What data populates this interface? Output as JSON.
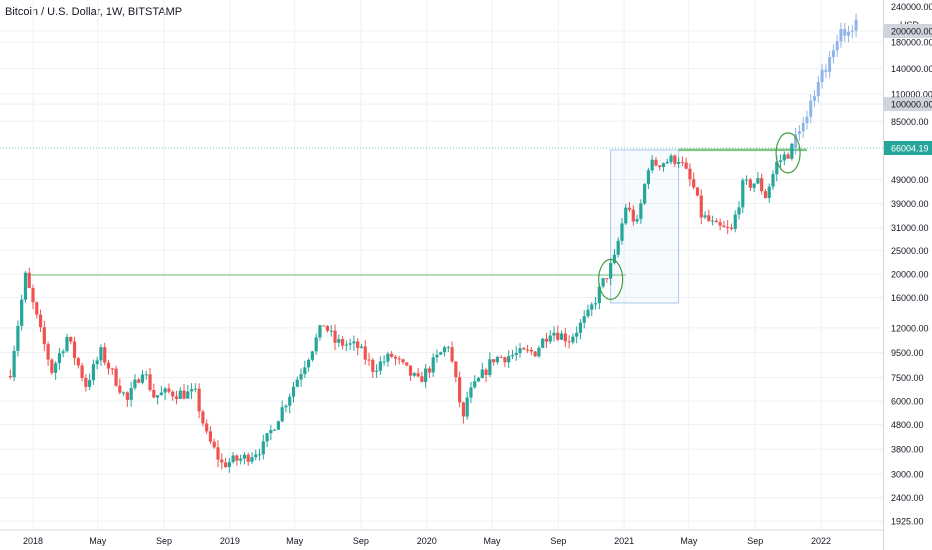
{
  "header": {
    "title": "Bitcoin / U.S. Dollar, 1W, BITSTAMP",
    "currency": "USD"
  },
  "colors": {
    "up": "#26a69a",
    "down": "#ef5350",
    "projection": "#90b4e8",
    "level_line": "#81c784",
    "current_price_badge": "#26a69a",
    "axis_text": "#131722",
    "grid": "#eef0f3",
    "range_box": "#a9c8ee"
  },
  "chart_data": {
    "type": "candlestick",
    "title": "Bitcoin / U.S. Dollar, 1W, BITSTAMP",
    "scale": "log",
    "ylim": [
      1800,
      245000
    ],
    "y_ticks": [
      "200000.00",
      "180000.00",
      "140000.00",
      "110000.00",
      "100000.00",
      "85000.00",
      "66004.19",
      "49000.00",
      "39000.00",
      "31000.00",
      "25000.00",
      "20000.00",
      "16000.00",
      "12000.00",
      "9500.00",
      "7500.00",
      "6000.00",
      "4800.00",
      "3800.00",
      "3000.00",
      "2400.00",
      "1925.00"
    ],
    "y_top_partial": "240000.00",
    "x_ticks": [
      "2018",
      "May",
      "Sep",
      "2019",
      "May",
      "Sep",
      "2020",
      "May",
      "Sep",
      "2021",
      "May",
      "Sep",
      "2022"
    ],
    "x_tick_dates": [
      "2018-01-01",
      "2018-05-01",
      "2018-09-01",
      "2019-01-01",
      "2019-05-01",
      "2019-09-01",
      "2020-01-01",
      "2020-05-01",
      "2020-09-01",
      "2021-01-01",
      "2021-05-01",
      "2021-09-01",
      "2022-01-01"
    ],
    "current_price": 66004.19,
    "highlighted_prices": [
      200000,
      100000
    ],
    "key_points": [
      {
        "date": "2017-11-20",
        "close": 8000
      },
      {
        "date": "2017-12-18",
        "close": 19500
      },
      {
        "date": "2018-01-15",
        "close": 11500
      },
      {
        "date": "2018-02-05",
        "close": 8000
      },
      {
        "date": "2018-03-05",
        "close": 11000
      },
      {
        "date": "2018-04-09",
        "close": 7000
      },
      {
        "date": "2018-05-07",
        "close": 9500
      },
      {
        "date": "2018-06-25",
        "close": 6000
      },
      {
        "date": "2018-07-23",
        "close": 8200
      },
      {
        "date": "2018-08-13",
        "close": 6300
      },
      {
        "date": "2018-09-10",
        "close": 6500
      },
      {
        "date": "2018-10-29",
        "close": 6400
      },
      {
        "date": "2018-11-19",
        "close": 4300
      },
      {
        "date": "2018-12-17",
        "close": 3300
      },
      {
        "date": "2019-01-28",
        "close": 3500
      },
      {
        "date": "2019-03-04",
        "close": 3900
      },
      {
        "date": "2019-04-01",
        "close": 5200
      },
      {
        "date": "2019-05-13",
        "close": 8000
      },
      {
        "date": "2019-06-24",
        "close": 12500
      },
      {
        "date": "2019-07-15",
        "close": 10500
      },
      {
        "date": "2019-08-26",
        "close": 10000
      },
      {
        "date": "2019-09-23",
        "close": 8200
      },
      {
        "date": "2019-10-28",
        "close": 9200
      },
      {
        "date": "2019-12-16",
        "close": 7200
      },
      {
        "date": "2020-02-10",
        "close": 10300
      },
      {
        "date": "2020-03-09",
        "close": 5000
      },
      {
        "date": "2020-03-16",
        "close": 6200
      },
      {
        "date": "2020-05-04",
        "close": 9000
      },
      {
        "date": "2020-07-20",
        "close": 9600
      },
      {
        "date": "2020-08-17",
        "close": 11800
      },
      {
        "date": "2020-09-21",
        "close": 10800
      },
      {
        "date": "2020-10-26",
        "close": 13500
      },
      {
        "date": "2020-11-23",
        "close": 18500
      },
      {
        "date": "2020-12-14",
        "close": 23000
      },
      {
        "date": "2021-01-04",
        "close": 38000
      },
      {
        "date": "2021-01-25",
        "close": 32000
      },
      {
        "date": "2021-02-15",
        "close": 56000
      },
      {
        "date": "2021-03-15",
        "close": 58000
      },
      {
        "date": "2021-04-12",
        "close": 60000
      },
      {
        "date": "2021-05-10",
        "close": 45000
      },
      {
        "date": "2021-05-24",
        "close": 35000
      },
      {
        "date": "2021-06-21",
        "close": 31000
      },
      {
        "date": "2021-07-19",
        "close": 30000
      },
      {
        "date": "2021-08-09",
        "close": 46000
      },
      {
        "date": "2021-09-06",
        "close": 48000
      },
      {
        "date": "2021-09-20",
        "close": 42000
      },
      {
        "date": "2021-10-11",
        "close": 57000
      },
      {
        "date": "2021-10-25",
        "close": 61000
      },
      {
        "date": "2021-11-01",
        "close": 63000
      },
      {
        "date": "2021-11-08",
        "close": 66004.19
      }
    ],
    "projection_points": [
      {
        "date": "2021-11-15",
        "close": 74000
      },
      {
        "date": "2021-12-06",
        "close": 92000
      },
      {
        "date": "2021-12-20",
        "close": 110000
      },
      {
        "date": "2022-01-03",
        "close": 135000
      },
      {
        "date": "2022-01-24",
        "close": 160000
      },
      {
        "date": "2022-02-07",
        "close": 195000
      },
      {
        "date": "2022-02-28",
        "close": 210000
      },
      {
        "date": "2022-03-14",
        "close": 215000
      }
    ],
    "annotations": {
      "horizontal_levels": [
        {
          "price": 19800,
          "from": "2017-12-18",
          "to": "2021-01-04"
        },
        {
          "price": 64800,
          "from": "2021-04-12",
          "to": "2021-12-06"
        }
      ],
      "circles": [
        {
          "date": "2020-12-07",
          "price": 19000
        },
        {
          "date": "2021-11-01",
          "price": 63000
        }
      ],
      "range_box": {
        "from": "2020-12-07",
        "to": "2021-04-12",
        "top": 64800,
        "bottom": 15200
      }
    }
  }
}
